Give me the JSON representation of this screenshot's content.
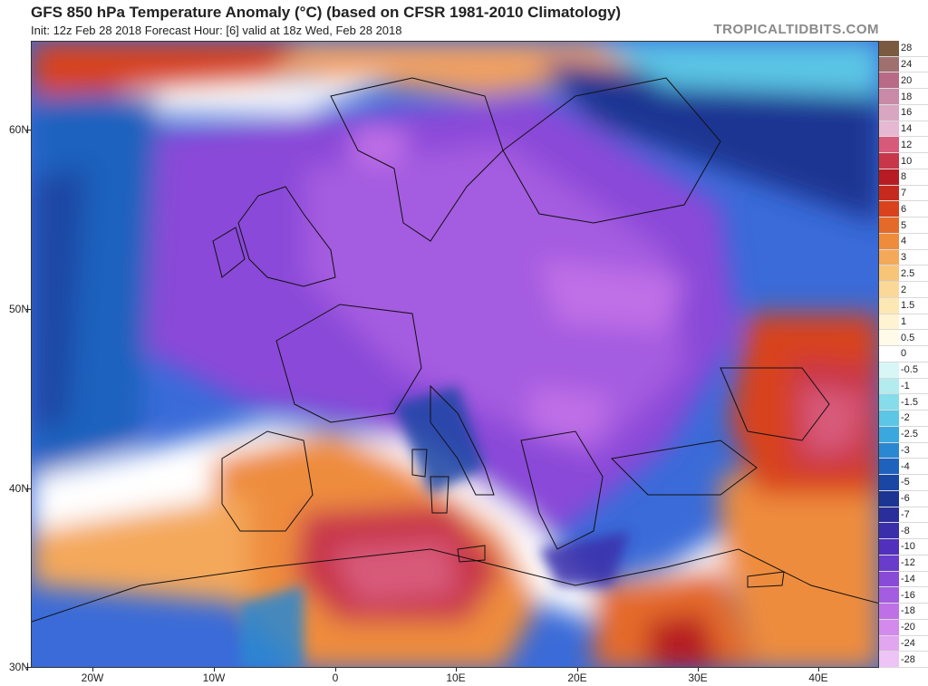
{
  "header": {
    "title": "GFS 850 hPa Temperature Anomaly (°C) (based on CFSR 1981-2010 Climatology)",
    "subtitle": "Init: 12z Feb 28 2018   Forecast Hour: [6]   valid at 18z Wed, Feb 28 2018",
    "brand": "TROPICALTIDBITS.COM"
  },
  "axes": {
    "lat_labels": [
      "60N",
      "50N",
      "40N",
      "30N"
    ],
    "lon_labels": [
      "20W",
      "10W",
      "0",
      "10E",
      "20E",
      "30E",
      "40E"
    ]
  },
  "colorbar": {
    "labels": [
      "28",
      "24",
      "20",
      "18",
      "16",
      "14",
      "12",
      "10",
      "8",
      "7",
      "6",
      "5",
      "4",
      "3",
      "2.5",
      "2",
      "1.5",
      "1",
      "0.5",
      "0",
      "-0.5",
      "-1",
      "-1.5",
      "-2",
      "-2.5",
      "-3",
      "-4",
      "-5",
      "-6",
      "-7",
      "-8",
      "-10",
      "-12",
      "-14",
      "-16",
      "-18",
      "-20",
      "-24",
      "-28"
    ],
    "colors": [
      "#7a5a40",
      "#a07070",
      "#b86a86",
      "#c98aa8",
      "#d9a6c2",
      "#e6b8d2",
      "#d85a7a",
      "#c8364a",
      "#b71c24",
      "#c62a1e",
      "#d8421c",
      "#e46a2a",
      "#ee8c3c",
      "#f4a85a",
      "#f8c478",
      "#fbd898",
      "#fde8b4",
      "#fff3d2",
      "#fffbe8",
      "#ffffff",
      "#d8f6f6",
      "#b2ecee",
      "#86dcea",
      "#5cc6e6",
      "#3aa8de",
      "#2a88d2",
      "#1e62be",
      "#1a46a4",
      "#1c3492",
      "#2a2e9a",
      "#3a2eaa",
      "#5030bc",
      "#6a3ccc",
      "#8a4ad8",
      "#a45ce0",
      "#c070e6",
      "#d48aec",
      "#e2a6f0",
      "#eec4f6"
    ]
  },
  "map_legend": {
    "cold_core": "#9c4fe0",
    "warm_core": "#c8364a",
    "ocean_cool": "#3a6bd8"
  }
}
